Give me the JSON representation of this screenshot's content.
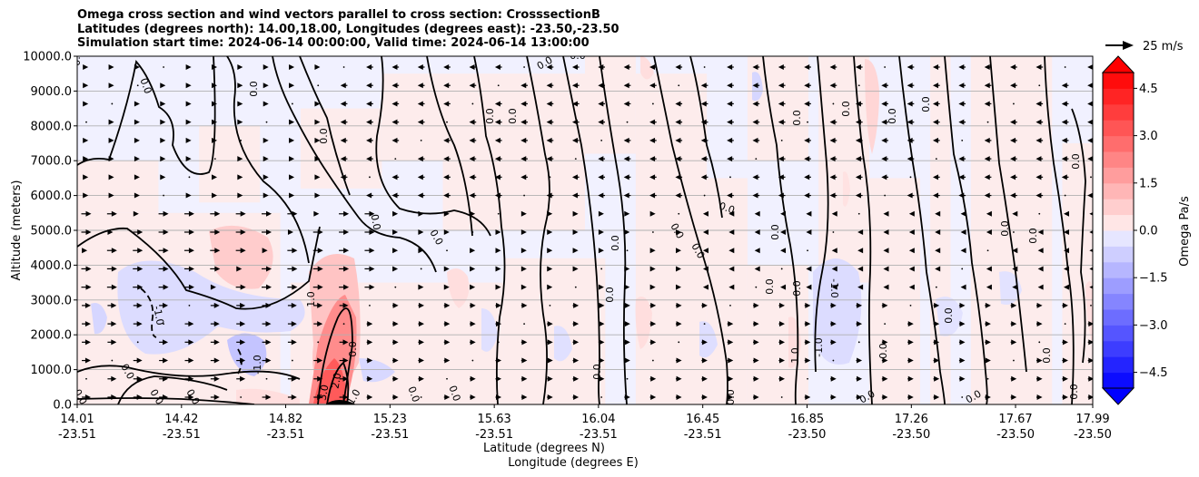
{
  "chart_data": {
    "type": "heatmap",
    "title_lines": [
      "Omega cross section and wind vectors parallel to cross section: CrosssectionB",
      "Latitudes (degrees north): 14.00,18.00, Longitudes (degrees east): -23.50,-23.50",
      "Simulation start time: 2024-06-14 00:00:00, Valid time: 2024-06-14 13:00:00"
    ],
    "ylabel": "Altitude (meters)",
    "xlabel_lines": [
      "Latitude (degrees N)",
      "Longitude (degrees E)"
    ],
    "ylim": [
      0,
      10000
    ],
    "y_ticks": [
      0,
      1000,
      2000,
      3000,
      4000,
      5000,
      6000,
      7000,
      8000,
      9000,
      10000
    ],
    "y_tick_labels": [
      "0.0",
      "1000.0",
      "2000.0",
      "3000.0",
      "4000.0",
      "5000.0",
      "6000.0",
      "7000.0",
      "8000.0",
      "9000.0",
      "10000.0"
    ],
    "x_ticks": [
      {
        "lat": "14.01",
        "lon": "-23.51",
        "frac": 0.0
      },
      {
        "lat": "14.42",
        "lon": "-23.51",
        "frac": 0.1027
      },
      {
        "lat": "14.82",
        "lon": "-23.51",
        "frac": 0.2053
      },
      {
        "lat": "15.23",
        "lon": "-23.51",
        "frac": 0.308
      },
      {
        "lat": "15.63",
        "lon": "-23.51",
        "frac": 0.4107
      },
      {
        "lat": "16.04",
        "lon": "-23.51",
        "frac": 0.5133
      },
      {
        "lat": "16.45",
        "lon": "-23.51",
        "frac": 0.616
      },
      {
        "lat": "16.85",
        "lon": "-23.50",
        "frac": 0.7187
      },
      {
        "lat": "17.26",
        "lon": "-23.50",
        "frac": 0.8214
      },
      {
        "lat": "17.67",
        "lon": "-23.50",
        "frac": 0.924
      },
      {
        "lat": "17.99",
        "lon": "-23.50",
        "frac": 1.0
      }
    ],
    "grid": "horizontal",
    "colorbar": {
      "label": "Omega Pa/s",
      "range": [
        -5.0,
        5.0
      ],
      "levels": 20,
      "ticks": [
        4.5,
        3.0,
        1.5,
        0.0,
        -1.5,
        -3.0,
        -4.5
      ],
      "tick_labels": [
        "4.5",
        "3.0",
        "1.5",
        "0.0",
        "−1.5",
        "−3.0",
        "−4.5"
      ],
      "colormap": "bwr",
      "extend": "both"
    },
    "quiver_key": {
      "label": "25 m/s",
      "speed": 25
    },
    "contour_labels": [
      "0.0",
      "-1.0",
      "1.0",
      "2.0",
      "3.0"
    ]
  },
  "colors": {
    "positive": "#ff0000",
    "negative": "#0000ff",
    "contour": "#000000"
  }
}
